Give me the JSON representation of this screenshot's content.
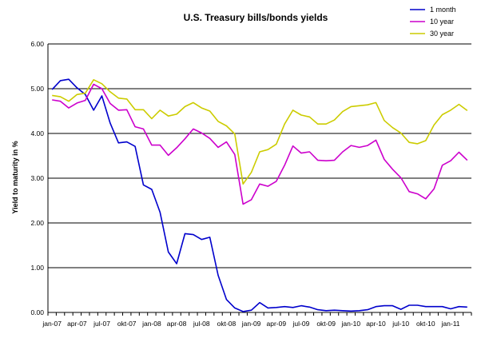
{
  "chart_data": {
    "type": "line",
    "title": "U.S. Treasury bills/bonds yields",
    "xlabel": "",
    "ylabel": "Yield to maturity in %",
    "ylim": [
      0,
      6
    ],
    "yticks": [
      "0.00",
      "1.00",
      "2.00",
      "3.00",
      "4.00",
      "5.00",
      "6.00"
    ],
    "xtick_labels": [
      "jan-07",
      "apr-07",
      "jul-07",
      "okt-07",
      "jan-08",
      "apr-08",
      "jul-08",
      "okt-08",
      "jan-09",
      "apr-09",
      "jul-09",
      "okt-09",
      "jan-10",
      "apr-10",
      "jul-10",
      "okt-10",
      "jan-11"
    ],
    "grid": "horizontal",
    "legend_position": "top-right",
    "series": [
      {
        "name": "1 month",
        "color": "#0000cc",
        "values": [
          4.98,
          5.18,
          5.21,
          5.02,
          4.87,
          4.52,
          4.84,
          4.23,
          3.79,
          3.81,
          3.71,
          2.85,
          2.75,
          2.24,
          1.35,
          1.09,
          1.76,
          1.74,
          1.63,
          1.68,
          0.83,
          0.29,
          0.1,
          0.02,
          0.05,
          0.22,
          0.1,
          0.11,
          0.13,
          0.11,
          0.15,
          0.12,
          0.06,
          0.04,
          0.05,
          0.04,
          0.03,
          0.04,
          0.06,
          0.13,
          0.15,
          0.15,
          0.07,
          0.16,
          0.16,
          0.13,
          0.13,
          0.13,
          0.08,
          0.13,
          0.12
        ]
      },
      {
        "name": "10 year",
        "color": "#cc00cc",
        "values": [
          4.75,
          4.72,
          4.57,
          4.68,
          4.74,
          5.1,
          5.0,
          4.67,
          4.52,
          4.53,
          4.15,
          4.1,
          3.74,
          3.74,
          3.51,
          3.68,
          3.88,
          4.1,
          4.01,
          3.89,
          3.69,
          3.81,
          3.53,
          2.42,
          2.52,
          2.87,
          2.82,
          2.93,
          3.29,
          3.72,
          3.56,
          3.59,
          3.4,
          3.39,
          3.4,
          3.59,
          3.73,
          3.69,
          3.73,
          3.85,
          3.42,
          3.2,
          3.01,
          2.7,
          2.65,
          2.54,
          2.76,
          3.29,
          3.39,
          3.58,
          3.4
        ]
      },
      {
        "name": "30 year",
        "color": "#cccc00",
        "values": [
          4.85,
          4.82,
          4.72,
          4.87,
          4.9,
          5.2,
          5.11,
          4.93,
          4.79,
          4.77,
          4.53,
          4.53,
          4.33,
          4.52,
          4.39,
          4.43,
          4.6,
          4.69,
          4.57,
          4.5,
          4.27,
          4.17,
          3.99,
          2.87,
          3.13,
          3.59,
          3.64,
          3.76,
          4.21,
          4.52,
          4.41,
          4.37,
          4.21,
          4.21,
          4.3,
          4.49,
          4.6,
          4.62,
          4.64,
          4.69,
          4.29,
          4.13,
          4.01,
          3.8,
          3.77,
          3.84,
          4.19,
          4.42,
          4.52,
          4.65,
          4.51
        ]
      }
    ]
  }
}
